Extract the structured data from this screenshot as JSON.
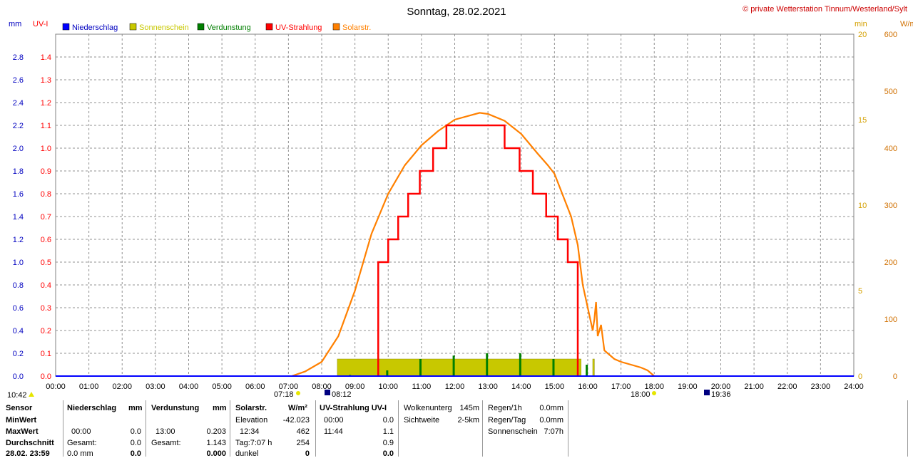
{
  "header": {
    "title": "Sonntag, 28.02.2021",
    "copyright": "© private Wetterstation Tinnum/Westerland/Sylt"
  },
  "axis_units": {
    "left1": "mm",
    "left2": "UV-I",
    "right1": "min",
    "right2": "W/m²"
  },
  "legend": [
    {
      "label": "Niederschlag",
      "color": "#0000ff",
      "text_color": "#0000c0"
    },
    {
      "label": "Sonnenschein",
      "color": "#c8c800",
      "text_color": "#c8c800"
    },
    {
      "label": "Verdunstung",
      "color": "#007f00",
      "text_color": "#007f00"
    },
    {
      "label": "UV-Strahlung",
      "color": "#ff0000",
      "text_color": "#ff0000"
    },
    {
      "label": "Solarstr.",
      "color": "#ff8000",
      "text_color": "#ff8000"
    }
  ],
  "markers": {
    "time_now": "10:42",
    "sunrise": "07:18",
    "sun_start": "08:12",
    "sunset": "18:00",
    "moon": "19:36"
  },
  "chart_data": {
    "type": "line",
    "x_range_hours": [
      0,
      24
    ],
    "x_ticks": [
      "00:00",
      "01:00",
      "02:00",
      "03:00",
      "04:00",
      "05:00",
      "06:00",
      "07:00",
      "08:00",
      "09:00",
      "10:00",
      "11:00",
      "12:00",
      "13:00",
      "14:00",
      "15:00",
      "16:00",
      "17:00",
      "18:00",
      "19:00",
      "20:00",
      "21:00",
      "22:00",
      "23:00",
      "24:00"
    ],
    "axes": {
      "mm": {
        "range": [
          0,
          3.0
        ],
        "ticks": [
          "0.0",
          "0.2",
          "0.4",
          "0.6",
          "0.8",
          "1.0",
          "1.2",
          "1.4",
          "1.6",
          "1.8",
          "2.0",
          "2.2",
          "2.4",
          "2.6",
          "2.8"
        ]
      },
      "uvi": {
        "range": [
          0,
          1.5
        ],
        "ticks": [
          "0.0",
          "0.1",
          "0.2",
          "0.3",
          "0.4",
          "0.5",
          "0.6",
          "0.7",
          "0.8",
          "0.9",
          "1.0",
          "1.1",
          "1.2",
          "1.3",
          "1.4"
        ]
      },
      "min": {
        "range": [
          0,
          20
        ],
        "ticks": [
          "0",
          "5",
          "10",
          "15",
          "20"
        ]
      },
      "wm2": {
        "range": [
          0,
          600
        ],
        "ticks": [
          "0",
          "100",
          "200",
          "300",
          "400",
          "500",
          "600"
        ]
      }
    },
    "grid": true,
    "series": [
      {
        "name": "Solarstr.",
        "axis": "wm2",
        "color": "#ff8000",
        "points": [
          [
            7.1,
            0
          ],
          [
            7.5,
            8
          ],
          [
            8.0,
            25
          ],
          [
            8.5,
            70
          ],
          [
            9.0,
            150
          ],
          [
            9.5,
            250
          ],
          [
            10.0,
            320
          ],
          [
            10.5,
            370
          ],
          [
            11.0,
            405
          ],
          [
            11.5,
            430
          ],
          [
            12.0,
            450
          ],
          [
            12.5,
            458
          ],
          [
            12.75,
            462
          ],
          [
            13.0,
            460
          ],
          [
            13.5,
            448
          ],
          [
            14.0,
            425
          ],
          [
            14.5,
            390
          ],
          [
            14.8,
            370
          ],
          [
            15.0,
            355
          ],
          [
            15.3,
            310
          ],
          [
            15.5,
            280
          ],
          [
            15.7,
            230
          ],
          [
            15.85,
            160
          ],
          [
            16.0,
            120
          ],
          [
            16.15,
            80
          ],
          [
            16.2,
            100
          ],
          [
            16.25,
            130
          ],
          [
            16.3,
            70
          ],
          [
            16.4,
            90
          ],
          [
            16.5,
            45
          ],
          [
            16.6,
            40
          ],
          [
            16.8,
            30
          ],
          [
            17.0,
            25
          ],
          [
            17.3,
            20
          ],
          [
            17.6,
            15
          ],
          [
            17.8,
            10
          ],
          [
            17.9,
            5
          ],
          [
            18.0,
            0
          ]
        ]
      },
      {
        "name": "UV-Strahlung",
        "axis": "uvi",
        "color": "#ff0000",
        "points": [
          [
            9.7,
            0
          ],
          [
            9.7,
            0.5
          ],
          [
            10.0,
            0.5
          ],
          [
            10.0,
            0.6
          ],
          [
            10.3,
            0.6
          ],
          [
            10.3,
            0.7
          ],
          [
            10.6,
            0.7
          ],
          [
            10.6,
            0.8
          ],
          [
            10.95,
            0.8
          ],
          [
            10.95,
            0.9
          ],
          [
            11.35,
            0.9
          ],
          [
            11.35,
            1.0
          ],
          [
            11.75,
            1.0
          ],
          [
            11.75,
            1.1
          ],
          [
            13.5,
            1.1
          ],
          [
            13.5,
            1.0
          ],
          [
            13.95,
            1.0
          ],
          [
            13.95,
            0.9
          ],
          [
            14.35,
            0.9
          ],
          [
            14.35,
            0.8
          ],
          [
            14.75,
            0.8
          ],
          [
            14.75,
            0.7
          ],
          [
            15.1,
            0.7
          ],
          [
            15.1,
            0.6
          ],
          [
            15.4,
            0.6
          ],
          [
            15.4,
            0.5
          ],
          [
            15.7,
            0.5
          ],
          [
            15.7,
            0
          ]
        ]
      },
      {
        "name": "Sonnenschein",
        "axis": "min",
        "color": "#c8c800",
        "bars": [
          [
            8.47,
            15.8,
            1
          ],
          [
            16.15,
            16.2,
            1
          ]
        ]
      },
      {
        "name": "Verdunstung",
        "axis": "mm",
        "color": "#007f00",
        "spikes": [
          [
            8.85,
            0.01
          ],
          [
            9.97,
            0.05
          ],
          [
            10.97,
            0.15
          ],
          [
            11.97,
            0.18
          ],
          [
            12.97,
            0.2
          ],
          [
            13.97,
            0.2
          ],
          [
            14.97,
            0.15
          ],
          [
            15.97,
            0.1
          ]
        ]
      }
    ]
  },
  "stats": {
    "sensor_col": {
      "h": "Sensor",
      "min": "MinWert",
      "max": "MaxWert",
      "avg": "Durchschnitt",
      "date": "28.02. 23:59"
    },
    "niederschlag": {
      "h": "Niederschlag",
      "unit": "mm",
      "max_t": "00:00",
      "max_v": "0.0",
      "gesamt_l": "Gesamt:",
      "gesamt_v": "0.0",
      "last_l": "0.0 mm",
      "last_v": "0.0"
    },
    "verdunstung": {
      "h": "Verdunstung",
      "unit": "mm",
      "max_t": "13:00",
      "max_v": "0.203",
      "gesamt_l": "Gesamt:",
      "gesamt_v": "1.143",
      "last_v": "0.000"
    },
    "solar": {
      "h": "Solarstr.",
      "unit": "W/m²",
      "elev_l": "Elevation",
      "elev_v": "-42.023",
      "max_t": "12:34",
      "max_v": "462",
      "tag_l": "Tag:7:07 h",
      "tag_v": "254",
      "dunkel_l": "dunkel",
      "dunkel_v": "0"
    },
    "uv": {
      "h": "UV-Strahlung UV-I",
      "min_t": "00:00",
      "min_v": "0.0",
      "max_t": "11:44",
      "max_v": "1.1",
      "avg_v": "0.9",
      "last_v": "0.0"
    },
    "wolken": {
      "l1": "Wolkenunterg",
      "v1": "145m",
      "l2": "Sichtweite",
      "v2": "2-5km"
    },
    "regen": {
      "l1": "Regen/1h",
      "v1": "0.0mm",
      "l2": "Regen/Tag",
      "v2": "0.0mm",
      "l3": "Sonnenschein",
      "v3": "7:07h"
    }
  }
}
